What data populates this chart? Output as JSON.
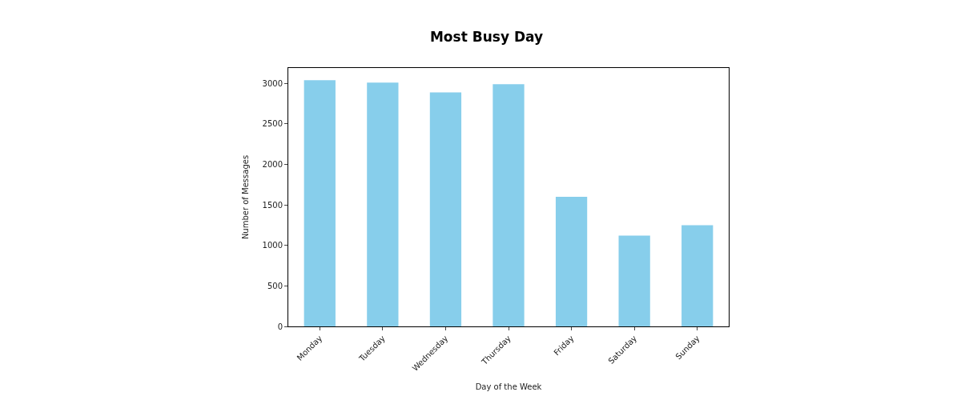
{
  "chart_data": {
    "type": "bar",
    "title": "Most Busy Day",
    "xlabel": "Day of the Week",
    "ylabel": "Number of Messages",
    "categories": [
      "Monday",
      "Tuesday",
      "Wednesday",
      "Thursday",
      "Friday",
      "Saturday",
      "Sunday"
    ],
    "values": [
      3040,
      3010,
      2890,
      2990,
      1600,
      1120,
      1250
    ],
    "color": "#87ceeb",
    "ylim": [
      0,
      3190
    ],
    "yticks": [
      0,
      500,
      1000,
      1500,
      2000,
      2500,
      3000
    ]
  }
}
